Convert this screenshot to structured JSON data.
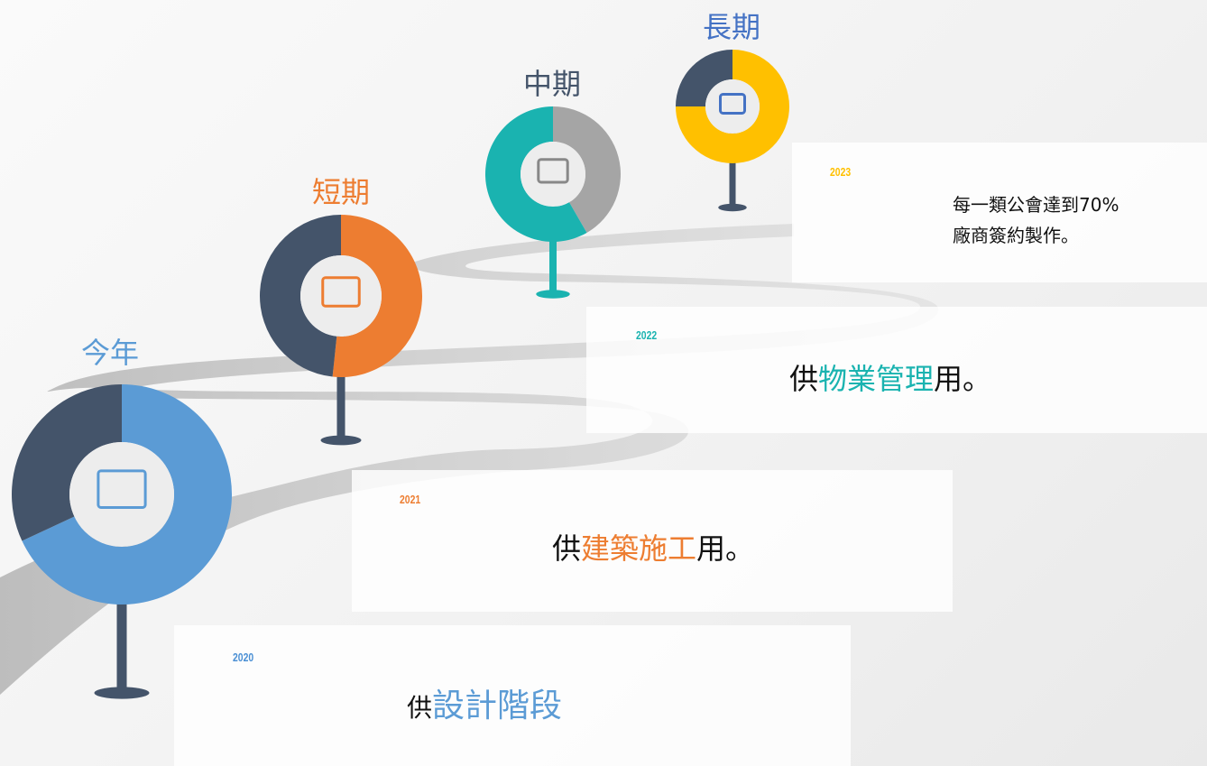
{
  "milestones": [
    {
      "stage": "今年",
      "year": "2020",
      "parts": [
        "供",
        "設計階段"
      ]
    },
    {
      "stage": "短期",
      "year": "2021",
      "parts": [
        "供",
        "建築施工",
        "用。"
      ]
    },
    {
      "stage": "中期",
      "year": "2022",
      "parts": [
        "供",
        "物業管理",
        "用。"
      ]
    },
    {
      "stage": "長期",
      "year": "2023",
      "lines": [
        "每一類公會達到70%",
        "廠商簽約製作。"
      ]
    }
  ]
}
